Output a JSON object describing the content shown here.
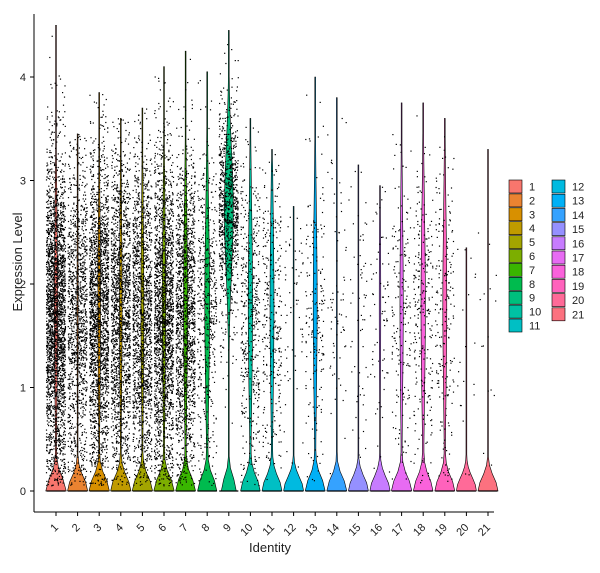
{
  "chart_data": {
    "type": "violin",
    "xlabel": "Identity",
    "ylabel": "Expression Level",
    "ylim": [
      -0.2,
      4.6
    ],
    "yticks": [
      0,
      1,
      2,
      3,
      4
    ],
    "categories": [
      "1",
      "2",
      "3",
      "4",
      "5",
      "6",
      "7",
      "8",
      "9",
      "10",
      "11",
      "12",
      "13",
      "14",
      "15",
      "16",
      "17",
      "18",
      "19",
      "20",
      "21"
    ],
    "colors": [
      "#F8766D",
      "#EA8331",
      "#D89000",
      "#C09B00",
      "#A3A500",
      "#7CAE00",
      "#39B600",
      "#00BB4E",
      "#00BF7D",
      "#00C1A3",
      "#00BFC4",
      "#00BAE0",
      "#00B0F6",
      "#35A2FF",
      "#9590FF",
      "#C77CFF",
      "#E76BF3",
      "#FA62DB",
      "#FF62BC",
      "#FF6A98",
      "#FC717F"
    ],
    "series_stats": [
      {
        "id": "1",
        "max": 4.5,
        "points": 2600,
        "zero_frac": 0.85
      },
      {
        "id": "2",
        "max": 3.45,
        "points": 1200,
        "zero_frac": 0.95
      },
      {
        "id": "3",
        "max": 3.85,
        "points": 2000,
        "zero_frac": 0.88
      },
      {
        "id": "4",
        "max": 3.6,
        "points": 1600,
        "zero_frac": 0.88
      },
      {
        "id": "5",
        "max": 3.7,
        "points": 1500,
        "zero_frac": 0.87
      },
      {
        "id": "6",
        "max": 4.1,
        "points": 2000,
        "zero_frac": 0.85
      },
      {
        "id": "7",
        "max": 4.25,
        "points": 1500,
        "zero_frac": 0.82
      },
      {
        "id": "8",
        "max": 4.05,
        "points": 500,
        "zero_frac": 0.78
      },
      {
        "id": "9",
        "max": 4.45,
        "points": 900,
        "zero_frac": 0.6
      },
      {
        "id": "10",
        "max": 3.6,
        "points": 450,
        "zero_frac": 0.8
      },
      {
        "id": "11",
        "max": 3.3,
        "points": 300,
        "zero_frac": 0.82
      },
      {
        "id": "12",
        "max": 2.75,
        "points": 60,
        "zero_frac": 0.97
      },
      {
        "id": "13",
        "max": 4.0,
        "points": 180,
        "zero_frac": 0.82
      },
      {
        "id": "14",
        "max": 3.8,
        "points": 70,
        "zero_frac": 0.97
      },
      {
        "id": "15",
        "max": 3.15,
        "points": 60,
        "zero_frac": 0.97
      },
      {
        "id": "16",
        "max": 2.95,
        "points": 70,
        "zero_frac": 0.93
      },
      {
        "id": "17",
        "max": 3.75,
        "points": 180,
        "zero_frac": 0.85
      },
      {
        "id": "18",
        "max": 3.75,
        "points": 250,
        "zero_frac": 0.8
      },
      {
        "id": "19",
        "max": 3.6,
        "points": 200,
        "zero_frac": 0.82
      },
      {
        "id": "20",
        "max": 2.35,
        "points": 20,
        "zero_frac": 0.98
      },
      {
        "id": "21",
        "max": 3.3,
        "points": 15,
        "zero_frac": 0.98
      }
    ]
  }
}
